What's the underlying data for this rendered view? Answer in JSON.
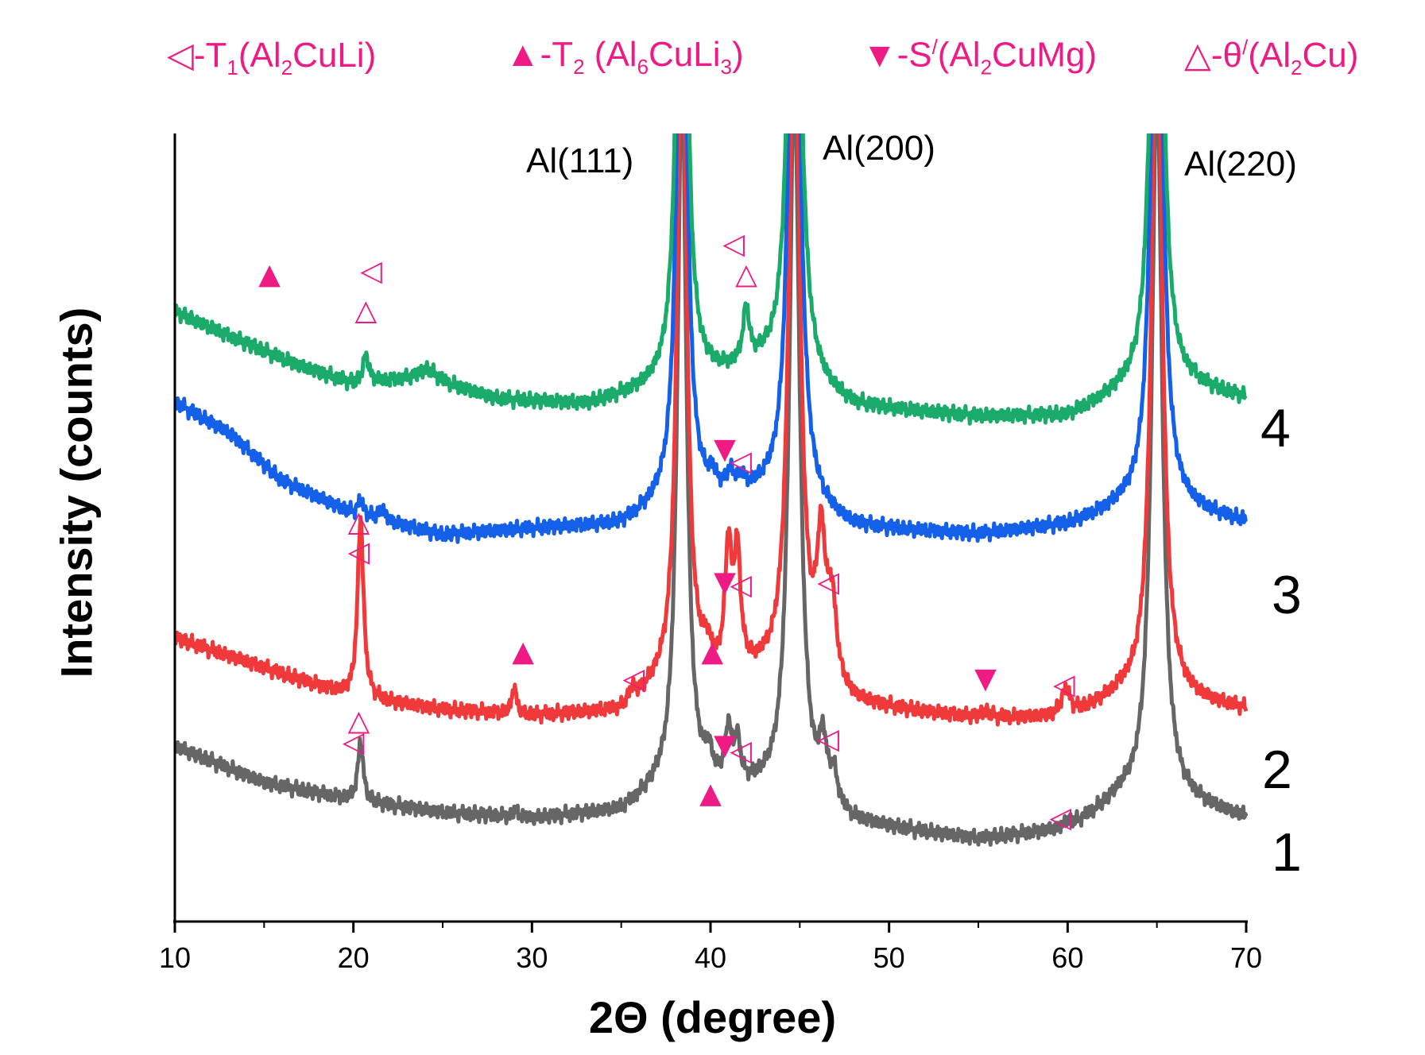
{
  "chart_data": {
    "type": "line",
    "xlabel": "2Θ (degree)",
    "ylabel": "Intensity (counts)",
    "xlim": [
      10,
      70
    ],
    "xticks": [
      "10",
      "20",
      "30",
      "40",
      "50",
      "60",
      "70"
    ],
    "legend": [
      {
        "symbol": "◁",
        "text": "-T",
        "sub": "1",
        "rest": "(Al",
        "sub2": "2",
        "rest2": "CuLi)"
      },
      {
        "symbol": "▲",
        "text": "-T",
        "sub": "2",
        "rest": " (Al",
        "sub2": "6",
        "rest2": "CuLi",
        "sub3": "3",
        "rest3": ")"
      },
      {
        "symbol": "▼",
        "text": "-S",
        "sup": "/",
        "rest": "(Al",
        "sub2": "2",
        "rest2": "CuMg)"
      },
      {
        "symbol": "△",
        "text": "-θ",
        "sup": "/",
        "rest": "(Al",
        "sub2": "2",
        "rest2": "Cu)"
      }
    ],
    "peak_labels": [
      "Al(111)",
      "Al(200)",
      "Al(220)"
    ],
    "series": [
      {
        "name": "1",
        "color": "#666666",
        "offset": 1.0,
        "baseline_points": [
          [
            10,
            1.9
          ],
          [
            15,
            1.3
          ],
          [
            20,
            1.0
          ],
          [
            25,
            0.8
          ],
          [
            30,
            0.7
          ],
          [
            35,
            0.8
          ],
          [
            37,
            1.1
          ],
          [
            43,
            1.1
          ],
          [
            48,
            0.6
          ],
          [
            55,
            0.35
          ],
          [
            60,
            0.5
          ],
          [
            63,
            1.0
          ],
          [
            67,
            0.9
          ],
          [
            70,
            0.7
          ]
        ],
        "peaks": [
          [
            20.4,
            1.0,
            0.18
          ],
          [
            29.1,
            0.12,
            0.15
          ],
          [
            38.4,
            12,
            0.3
          ],
          [
            39.9,
            0.4,
            0.25
          ],
          [
            41.0,
            0.9,
            0.2
          ],
          [
            41.5,
            0.7,
            0.2
          ],
          [
            44.7,
            12,
            0.35
          ],
          [
            46.3,
            0.9,
            0.25
          ],
          [
            46.9,
            0.5,
            0.25
          ],
          [
            60.0,
            0.12,
            0.25
          ],
          [
            65.0,
            12,
            0.35
          ]
        ]
      },
      {
        "name": "2",
        "color": "#f0393a",
        "offset": 3.2,
        "baseline_points": [
          [
            10,
            1.5
          ],
          [
            15,
            1.0
          ],
          [
            20,
            0.5
          ],
          [
            25,
            0.3
          ],
          [
            30,
            0.2
          ],
          [
            35,
            0.25
          ],
          [
            37,
            0.6
          ],
          [
            43,
            0.8
          ],
          [
            48,
            0.35
          ],
          [
            55,
            0.15
          ],
          [
            60,
            0.15
          ],
          [
            63,
            0.5
          ],
          [
            67,
            0.4
          ],
          [
            70,
            0.3
          ]
        ],
        "peaks": [
          [
            20.4,
            3.0,
            0.2
          ],
          [
            29.0,
            0.45,
            0.15
          ],
          [
            35.6,
            0.2,
            0.2
          ],
          [
            38.4,
            12,
            0.3
          ],
          [
            39.8,
            0.35,
            0.25
          ],
          [
            41.0,
            2.0,
            0.22
          ],
          [
            41.5,
            1.9,
            0.22
          ],
          [
            44.7,
            12,
            0.35
          ],
          [
            46.2,
            2.2,
            0.3
          ],
          [
            46.8,
            1.3,
            0.3
          ],
          [
            55.4,
            0.1,
            0.3
          ],
          [
            59.9,
            0.45,
            0.3
          ],
          [
            65.0,
            12,
            0.35
          ]
        ]
      },
      {
        "name": "3",
        "color": "#1560e8",
        "offset": 6.2,
        "baseline_points": [
          [
            10,
            2.4
          ],
          [
            13,
            1.9
          ],
          [
            16,
            1.1
          ],
          [
            20,
            0.55
          ],
          [
            25,
            0.2
          ],
          [
            30,
            0.3
          ],
          [
            35,
            0.35
          ],
          [
            37,
            0.6
          ],
          [
            43,
            0.8
          ],
          [
            48,
            0.3
          ],
          [
            55,
            0.2
          ],
          [
            60,
            0.35
          ],
          [
            63,
            0.6
          ],
          [
            67,
            0.55
          ],
          [
            70,
            0.4
          ]
        ],
        "peaks": [
          [
            20.4,
            0.25,
            0.2
          ],
          [
            21.6,
            0.2,
            0.2
          ],
          [
            38.4,
            12,
            0.3
          ],
          [
            40.1,
            0.25,
            0.25
          ],
          [
            41.1,
            0.3,
            0.25
          ],
          [
            41.7,
            0.2,
            0.25
          ],
          [
            44.7,
            12,
            0.35
          ],
          [
            65.0,
            12,
            0.35
          ]
        ]
      },
      {
        "name": "4",
        "color": "#1aab6b",
        "offset": 8.2,
        "baseline_points": [
          [
            10,
            1.9
          ],
          [
            13,
            1.5
          ],
          [
            17,
            1.0
          ],
          [
            20,
            0.7
          ],
          [
            24,
            0.8
          ],
          [
            28,
            0.45
          ],
          [
            33,
            0.35
          ],
          [
            37,
            0.6
          ],
          [
            43,
            0.9
          ],
          [
            48,
            0.3
          ],
          [
            55,
            0.15
          ],
          [
            60,
            0.15
          ],
          [
            63,
            0.5
          ],
          [
            67,
            0.6
          ],
          [
            70,
            0.45
          ]
        ],
        "peaks": [
          [
            20.7,
            0.45,
            0.2
          ],
          [
            24.2,
            0.15,
            0.6
          ],
          [
            38.4,
            12,
            0.3
          ],
          [
            42.0,
            0.9,
            0.22
          ],
          [
            44.7,
            12,
            0.35
          ],
          [
            65.0,
            12,
            0.35
          ]
        ]
      }
    ],
    "markers": [
      {
        "symbol": "▲",
        "series": "4",
        "x": 15.3,
        "y_level": 10.7,
        "filled": true
      },
      {
        "symbol": "◁",
        "series": "4",
        "x": 21.0,
        "y_level": 10.75,
        "filled": false
      },
      {
        "symbol": "△",
        "series": "4",
        "x": 20.7,
        "y_level": 10.1,
        "filled": false
      },
      {
        "symbol": "◁",
        "series": "4",
        "x": 41.3,
        "y_level": 11.2,
        "filled": false
      },
      {
        "symbol": "△",
        "series": "4",
        "x": 42.0,
        "y_level": 10.7,
        "filled": false
      },
      {
        "symbol": "▼",
        "series": "3",
        "x": 40.8,
        "y_level": 7.8,
        "filled": true
      },
      {
        "symbol": "◁",
        "series": "3",
        "x": 41.7,
        "y_level": 7.6,
        "filled": false
      },
      {
        "symbol": "△",
        "series": "2",
        "x": 20.3,
        "y_level": 6.6,
        "filled": false
      },
      {
        "symbol": "◁",
        "series": "2",
        "x": 20.3,
        "y_level": 6.1,
        "filled": false
      },
      {
        "symbol": "▼",
        "series": "2",
        "x": 40.8,
        "y_level": 5.6,
        "filled": true
      },
      {
        "symbol": "◁",
        "series": "2",
        "x": 41.7,
        "y_level": 5.55,
        "filled": false
      },
      {
        "symbol": "◁",
        "series": "2",
        "x": 46.6,
        "y_level": 5.6,
        "filled": false
      },
      {
        "symbol": "▲",
        "series": "2",
        "x": 29.5,
        "y_level": 4.45,
        "filled": true
      },
      {
        "symbol": "◁",
        "series": "2",
        "x": 35.7,
        "y_level": 4.0,
        "filled": false
      },
      {
        "symbol": "▲",
        "series": "2",
        "x": 40.1,
        "y_level": 4.45,
        "filled": true
      },
      {
        "symbol": "▼",
        "series": "2",
        "x": 55.4,
        "y_level": 4.0,
        "filled": true
      },
      {
        "symbol": "◁",
        "series": "2",
        "x": 59.8,
        "y_level": 3.9,
        "filled": false
      },
      {
        "symbol": "△",
        "series": "1",
        "x": 20.3,
        "y_level": 3.3,
        "filled": false
      },
      {
        "symbol": "◁",
        "series": "1",
        "x": 20.0,
        "y_level": 2.95,
        "filled": false
      },
      {
        "symbol": "▼",
        "series": "1",
        "x": 40.8,
        "y_level": 2.9,
        "filled": true
      },
      {
        "symbol": "◁",
        "series": "1",
        "x": 41.7,
        "y_level": 2.8,
        "filled": false
      },
      {
        "symbol": "◁",
        "series": "1",
        "x": 46.6,
        "y_level": 3.0,
        "filled": false
      },
      {
        "symbol": "▲",
        "series": "1",
        "x": 40.0,
        "y_level": 2.1,
        "filled": true
      },
      {
        "symbol": "◁",
        "series": "1",
        "x": 59.6,
        "y_level": 1.7,
        "filled": false
      }
    ],
    "marker_color": "#ee1b84"
  }
}
